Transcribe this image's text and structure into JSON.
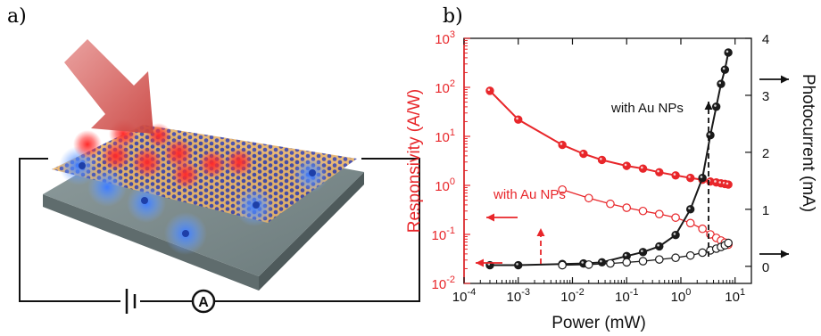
{
  "panels": {
    "a_label": "a)",
    "b_label": "b)"
  },
  "scheme": {
    "ammeter_symbol": "A"
  },
  "colors": {
    "responsivity": "#e8262a",
    "photocurrent": "#1a1a1a"
  },
  "chart_data": {
    "type": "line",
    "title": "",
    "xlabel": "Power (mW)",
    "xscale": "log",
    "xlim": [
      0.0001,
      20
    ],
    "x_ticks": [
      "10",
      "10",
      "10",
      "10",
      "10",
      "10"
    ],
    "x_tick_exps": [
      "-4",
      "-3",
      "-2",
      "-1",
      "0",
      "1"
    ],
    "y_left": {
      "label": "Responsivity (A/W)",
      "scale": "log",
      "lim": [
        0.01,
        1000
      ],
      "ticks": [
        "10",
        "10",
        "10",
        "10",
        "10",
        "10"
      ],
      "tick_exps": [
        "3",
        "2",
        "1",
        "0",
        "-1",
        "-2"
      ]
    },
    "y_right": {
      "label": "Photocurrent (mA)",
      "scale": "linear",
      "lim": [
        -0.3,
        4
      ],
      "ticks": [
        "4",
        "3",
        "2",
        "1",
        "0"
      ]
    },
    "annotations": [
      "with Au NPs",
      "with Au NPs"
    ],
    "series": [
      {
        "axis": "left",
        "marker": "filled",
        "color": "#e8262a",
        "x": [
          0.0003,
          0.001,
          0.0065,
          0.016,
          0.035,
          0.1,
          0.2,
          0.4,
          0.8,
          1.5,
          2.5,
          3.5,
          4.5,
          5.5,
          6.5,
          7.5
        ],
        "y": [
          85,
          22,
          6.7,
          4.4,
          3.3,
          2.5,
          2.2,
          1.85,
          1.6,
          1.42,
          1.3,
          1.2,
          1.15,
          1.1,
          1.07,
          1.04
        ]
      },
      {
        "axis": "left",
        "marker": "open",
        "color": "#e8262a",
        "x": [
          0.0065,
          0.02,
          0.05,
          0.1,
          0.2,
          0.4,
          0.8,
          1.5,
          2.5,
          3.5,
          4.5,
          5.5,
          6.5,
          7.5
        ],
        "y": [
          0.82,
          0.55,
          0.42,
          0.35,
          0.3,
          0.26,
          0.22,
          0.17,
          0.13,
          0.1,
          0.085,
          0.075,
          0.068,
          0.062
        ]
      },
      {
        "axis": "right",
        "marker": "filled",
        "color": "#1a1a1a",
        "x": [
          0.0003,
          0.001,
          0.0065,
          0.016,
          0.035,
          0.1,
          0.2,
          0.4,
          0.8,
          1.5,
          2.5,
          3.5,
          4.5,
          5.5,
          6.5,
          7.5
        ],
        "y": [
          0.02,
          0.02,
          0.04,
          0.05,
          0.07,
          0.18,
          0.25,
          0.35,
          0.55,
          1.0,
          1.55,
          2.3,
          2.8,
          3.2,
          3.45,
          3.75
        ]
      },
      {
        "axis": "right",
        "marker": "open",
        "color": "#1a1a1a",
        "x": [
          0.0065,
          0.02,
          0.05,
          0.1,
          0.2,
          0.4,
          0.8,
          1.5,
          2.5,
          3.5,
          4.5,
          5.5,
          6.5,
          7.5
        ],
        "y": [
          0.02,
          0.03,
          0.05,
          0.07,
          0.09,
          0.12,
          0.15,
          0.19,
          0.24,
          0.28,
          0.31,
          0.34,
          0.37,
          0.41
        ]
      }
    ]
  }
}
